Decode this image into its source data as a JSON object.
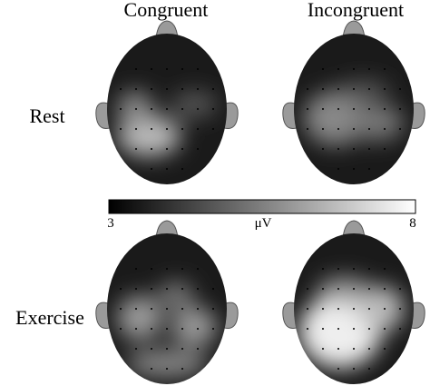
{
  "columns": [
    "Congruent",
    "Incongruent"
  ],
  "rows": [
    "Rest",
    "Exercise"
  ],
  "colorbar": {
    "min": "3",
    "max": "8",
    "unit": "μV"
  }
}
